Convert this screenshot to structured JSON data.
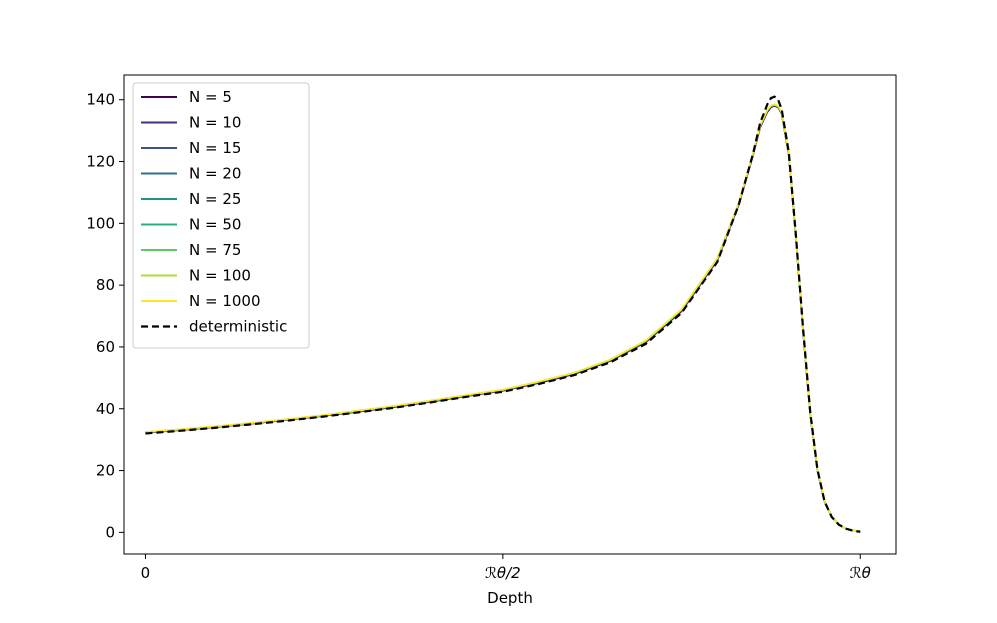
{
  "chart_data": {
    "type": "line",
    "title": "",
    "xlabel": "Depth",
    "ylabel": "",
    "xlim": [
      -0.03,
      1.05
    ],
    "ylim": [
      -7,
      148
    ],
    "xticks": [
      {
        "value": 0,
        "label": "0"
      },
      {
        "value": 0.5,
        "label": "ℛθ/2"
      },
      {
        "value": 1.0,
        "label": "ℛθ"
      }
    ],
    "yticks": [
      {
        "value": 0,
        "label": "0"
      },
      {
        "value": 20,
        "label": "20"
      },
      {
        "value": 40,
        "label": "40"
      },
      {
        "value": 60,
        "label": "60"
      },
      {
        "value": 80,
        "label": "80"
      },
      {
        "value": 100,
        "label": "100"
      },
      {
        "value": 120,
        "label": "120"
      },
      {
        "value": 140,
        "label": "140"
      }
    ],
    "grid": false,
    "legend_position": "top-left",
    "x": [
      0.0,
      0.05,
      0.1,
      0.15,
      0.2,
      0.25,
      0.3,
      0.35,
      0.4,
      0.45,
      0.5,
      0.55,
      0.6,
      0.65,
      0.7,
      0.75,
      0.8,
      0.83,
      0.85,
      0.86,
      0.87,
      0.875,
      0.88,
      0.885,
      0.89,
      0.9,
      0.91,
      0.92,
      0.93,
      0.94,
      0.95,
      0.96,
      0.97,
      0.98,
      0.99,
      1.0
    ],
    "series": [
      {
        "name": "N = 5",
        "color": "#440154",
        "style": "solid",
        "values": [
          32.2,
          33.1,
          34.1,
          35.2,
          36.4,
          37.7,
          39.1,
          40.6,
          42.3,
          44.1,
          45.8,
          48.3,
          51.2,
          55.4,
          61.5,
          71.5,
          88.0,
          106.0,
          122.0,
          131.0,
          136.0,
          137.5,
          138.0,
          137.5,
          135.5,
          122.0,
          95.0,
          65.0,
          38.0,
          20.0,
          10.0,
          5.0,
          2.5,
          1.2,
          0.6,
          0.3
        ]
      },
      {
        "name": "N = 10",
        "color": "#472d7b",
        "style": "solid",
        "values": [
          32.3,
          33.2,
          34.2,
          35.3,
          36.5,
          37.8,
          39.2,
          40.7,
          42.4,
          44.2,
          45.9,
          48.5,
          51.4,
          55.6,
          61.7,
          71.8,
          88.3,
          106.3,
          122.3,
          131.3,
          136.3,
          137.7,
          138.1,
          137.6,
          135.6,
          122.2,
          95.2,
          65.2,
          38.1,
          20.1,
          10.1,
          5.1,
          2.5,
          1.2,
          0.6,
          0.3
        ]
      },
      {
        "name": "N = 15",
        "color": "#3b528b",
        "style": "solid",
        "values": [
          32.3,
          33.2,
          34.2,
          35.3,
          36.5,
          37.8,
          39.2,
          40.8,
          42.5,
          44.3,
          46.0,
          48.6,
          51.5,
          55.7,
          61.8,
          71.9,
          88.4,
          106.4,
          122.4,
          131.4,
          136.4,
          137.8,
          138.2,
          137.7,
          135.7,
          122.3,
          95.3,
          65.3,
          38.2,
          20.2,
          10.1,
          5.1,
          2.5,
          1.2,
          0.6,
          0.3
        ]
      },
      {
        "name": "N = 20",
        "color": "#2c728e",
        "style": "solid",
        "values": [
          32.4,
          33.3,
          34.3,
          35.4,
          36.6,
          37.9,
          39.3,
          40.8,
          42.5,
          44.3,
          46.0,
          48.6,
          51.5,
          55.7,
          61.9,
          72.0,
          88.5,
          106.5,
          122.5,
          131.5,
          136.5,
          137.9,
          138.3,
          137.8,
          135.8,
          122.4,
          95.4,
          65.4,
          38.3,
          20.2,
          10.2,
          5.1,
          2.5,
          1.2,
          0.6,
          0.3
        ]
      },
      {
        "name": "N = 25",
        "color": "#21918c",
        "style": "solid",
        "values": [
          32.4,
          33.3,
          34.3,
          35.4,
          36.6,
          37.9,
          39.3,
          40.9,
          42.6,
          44.4,
          46.1,
          48.7,
          51.6,
          55.8,
          61.9,
          72.0,
          88.5,
          106.5,
          122.5,
          131.5,
          136.5,
          137.9,
          138.3,
          137.8,
          135.8,
          122.4,
          95.4,
          65.4,
          38.3,
          20.3,
          10.2,
          5.1,
          2.5,
          1.2,
          0.6,
          0.3
        ]
      },
      {
        "name": "N = 50",
        "color": "#28ae80",
        "style": "solid",
        "values": [
          32.4,
          33.3,
          34.3,
          35.4,
          36.6,
          37.9,
          39.4,
          40.9,
          42.6,
          44.4,
          46.1,
          48.7,
          51.6,
          55.8,
          62.0,
          72.1,
          88.6,
          106.6,
          122.6,
          131.6,
          136.6,
          138.0,
          138.4,
          137.9,
          135.9,
          122.5,
          95.5,
          65.5,
          38.4,
          20.3,
          10.2,
          5.1,
          2.5,
          1.2,
          0.6,
          0.3
        ]
      },
      {
        "name": "N = 75",
        "color": "#5ec962",
        "style": "solid",
        "values": [
          32.4,
          33.3,
          34.3,
          35.4,
          36.6,
          37.9,
          39.4,
          40.9,
          42.6,
          44.4,
          46.1,
          48.7,
          51.6,
          55.8,
          62.0,
          72.1,
          88.6,
          106.6,
          122.6,
          131.6,
          136.6,
          138.0,
          138.4,
          137.9,
          135.9,
          122.5,
          95.5,
          65.5,
          38.4,
          20.3,
          10.2,
          5.1,
          2.5,
          1.2,
          0.6,
          0.3
        ]
      },
      {
        "name": "N = 100",
        "color": "#addc30",
        "style": "solid",
        "values": [
          32.4,
          33.3,
          34.3,
          35.4,
          36.6,
          37.9,
          39.4,
          40.9,
          42.6,
          44.4,
          46.1,
          48.7,
          51.6,
          55.8,
          62.0,
          72.1,
          88.6,
          106.6,
          122.6,
          131.6,
          136.6,
          138.0,
          138.4,
          137.9,
          135.9,
          122.5,
          95.5,
          65.5,
          38.4,
          20.3,
          10.2,
          5.1,
          2.5,
          1.2,
          0.6,
          0.3
        ]
      },
      {
        "name": "N = 1000",
        "color": "#fde725",
        "style": "solid",
        "values": [
          32.5,
          33.4,
          34.4,
          35.5,
          36.7,
          38.0,
          39.5,
          41.0,
          42.7,
          44.5,
          46.2,
          48.8,
          51.7,
          55.9,
          62.1,
          72.2,
          88.7,
          106.7,
          122.7,
          131.7,
          136.7,
          138.1,
          138.5,
          138.0,
          136.0,
          122.6,
          95.6,
          65.6,
          38.5,
          20.4,
          10.3,
          5.1,
          2.5,
          1.2,
          0.6,
          0.3
        ]
      },
      {
        "name": "deterministic",
        "color": "#000000",
        "style": "dashed",
        "values": [
          32.0,
          32.9,
          33.9,
          35.0,
          36.2,
          37.5,
          38.9,
          40.4,
          42.1,
          43.9,
          45.5,
          48.0,
          50.9,
          55.0,
          61.0,
          71.0,
          87.5,
          106.0,
          122.5,
          132.5,
          138.5,
          140.5,
          141.0,
          140.0,
          137.0,
          123.0,
          96.0,
          66.0,
          39.0,
          20.5,
          10.0,
          5.0,
          2.5,
          1.2,
          0.5,
          0.2
        ]
      }
    ]
  }
}
